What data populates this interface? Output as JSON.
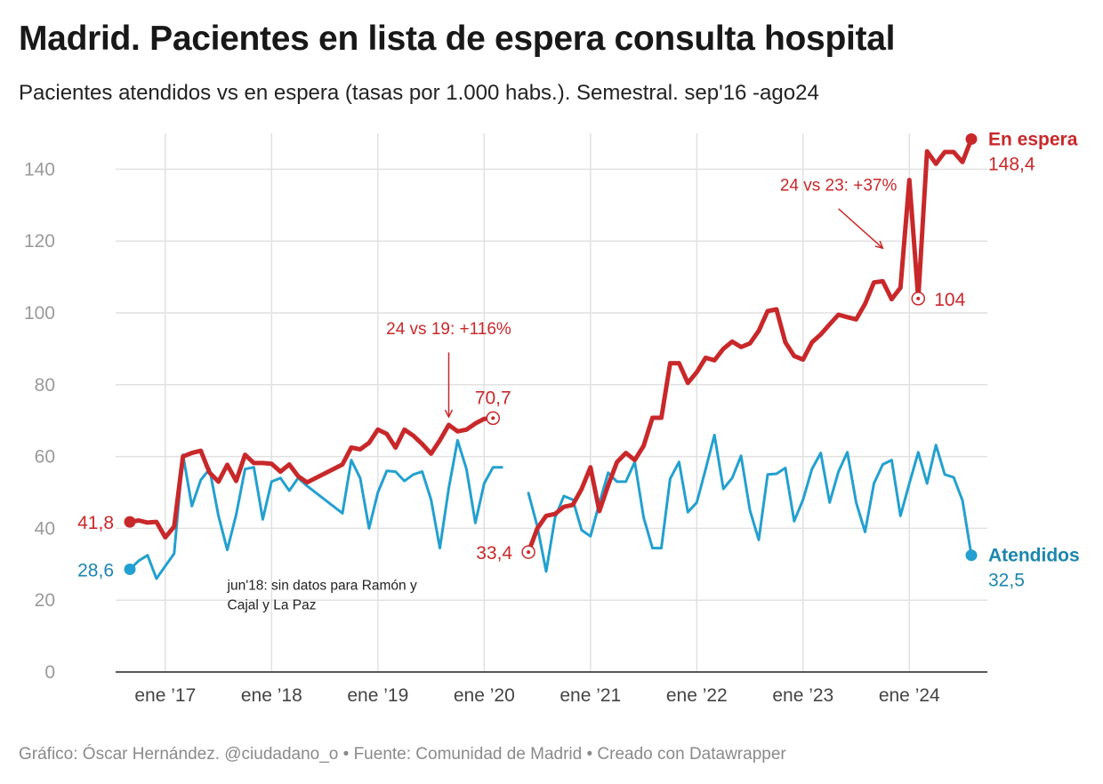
{
  "title": "Madrid. Pacientes en lista de espera consulta hospital",
  "subtitle": "Pacientes atendidos vs en espera (tasas por 1.000 habs.). Semestral. sep'16 -ago24",
  "footer": "Gráfico: Óscar Hernández. @ciudadano_o • Fuente: Comunidad de Madrid • Creado con Datawrapper",
  "colors": {
    "espera": "#c8282a",
    "atendidos": "#22a0cf",
    "atendidos_label": "#1b86ad"
  },
  "chart_data": {
    "type": "line",
    "ylim": [
      0,
      150
    ],
    "y_ticks": [
      "0",
      "20",
      "40",
      "60",
      "80",
      "100",
      "120",
      "140"
    ],
    "x_range": [
      "2016-09",
      "2024-08"
    ],
    "x_ticks": [
      {
        "date": "2017-01",
        "label": "ene ’17"
      },
      {
        "date": "2018-01",
        "label": "ene ’18"
      },
      {
        "date": "2019-01",
        "label": "ene ’19"
      },
      {
        "date": "2020-01",
        "label": "ene ’20"
      },
      {
        "date": "2021-01",
        "label": "ene ’21"
      },
      {
        "date": "2022-01",
        "label": "ene ’22"
      },
      {
        "date": "2023-01",
        "label": "ene ’23"
      },
      {
        "date": "2024-01",
        "label": "ene ’24"
      }
    ],
    "grid": true,
    "series": [
      {
        "name": "En espera",
        "end_label": "148,4",
        "segments": [
          [
            [
              "2016-09",
              41.8
            ],
            [
              "2016-10",
              42.2
            ],
            [
              "2016-11",
              41.6
            ],
            [
              "2016-12",
              41.8
            ],
            [
              "2017-01",
              37.5
            ],
            [
              "2017-02",
              40.5
            ],
            [
              "2017-03",
              60
            ],
            [
              "2017-04",
              61
            ],
            [
              "2017-05",
              61.6
            ],
            [
              "2017-06",
              55.5
            ],
            [
              "2017-07",
              53
            ],
            [
              "2017-08",
              57.7
            ],
            [
              "2017-09",
              53.2
            ],
            [
              "2017-10",
              60.5
            ],
            [
              "2017-11",
              58.2
            ],
            [
              "2017-12",
              58.2
            ],
            [
              "2018-01",
              58
            ],
            [
              "2018-02",
              55.8
            ],
            [
              "2018-03",
              57.8
            ],
            [
              "2018-04",
              54.5
            ],
            [
              "2018-05",
              52.8
            ],
            [
              "2018-09",
              57.8
            ],
            [
              "2018-10",
              62.5
            ],
            [
              "2018-11",
              62
            ],
            [
              "2018-12",
              63.8
            ],
            [
              "2019-01",
              67.5
            ],
            [
              "2019-02",
              66.3
            ],
            [
              "2019-03",
              62.5
            ],
            [
              "2019-04",
              67.5
            ],
            [
              "2019-05",
              65.8
            ],
            [
              "2019-06",
              63.5
            ],
            [
              "2019-07",
              60.8
            ],
            [
              "2019-08",
              64.5
            ],
            [
              "2019-09",
              68.8
            ],
            [
              "2019-10",
              67
            ],
            [
              "2019-11",
              67.5
            ],
            [
              "2019-12",
              69.2
            ],
            [
              "2020-01",
              70.5
            ],
            [
              "2020-02",
              70.7
            ]
          ],
          [
            [
              "2020-06",
              33.4
            ],
            [
              "2020-07",
              40
            ],
            [
              "2020-08",
              43.5
            ],
            [
              "2020-09",
              44
            ],
            [
              "2020-10",
              46
            ],
            [
              "2020-11",
              46.5
            ],
            [
              "2020-12",
              51
            ],
            [
              "2021-01",
              57
            ],
            [
              "2021-02",
              44.8
            ],
            [
              "2021-03",
              52
            ],
            [
              "2021-04",
              58.5
            ],
            [
              "2021-05",
              61
            ],
            [
              "2021-06",
              59
            ],
            [
              "2021-07",
              63
            ],
            [
              "2021-08",
              70.8
            ],
            [
              "2021-09",
              70.8
            ],
            [
              "2021-10",
              86
            ],
            [
              "2021-11",
              86
            ],
            [
              "2021-12",
              80.5
            ],
            [
              "2022-01",
              83.5
            ],
            [
              "2022-02",
              87.5
            ],
            [
              "2022-03",
              86.8
            ],
            [
              "2022-04",
              90
            ],
            [
              "2022-05",
              92
            ],
            [
              "2022-06",
              90.5
            ],
            [
              "2022-07",
              91.5
            ],
            [
              "2022-08",
              95
            ],
            [
              "2022-09",
              100.5
            ],
            [
              "2022-10",
              101
            ],
            [
              "2022-11",
              91.8
            ],
            [
              "2022-12",
              88
            ],
            [
              "2023-01",
              87
            ],
            [
              "2023-02",
              91.8
            ],
            [
              "2023-03",
              94
            ],
            [
              "2023-04",
              96.8
            ],
            [
              "2023-05",
              99.5
            ],
            [
              "2023-06",
              98.8
            ],
            [
              "2023-07",
              98.2
            ],
            [
              "2023-08",
              102.5
            ],
            [
              "2023-09",
              108.5
            ],
            [
              "2023-10",
              108.8
            ],
            [
              "2023-11",
              103.8
            ],
            [
              "2023-12",
              107
            ],
            [
              "2024-01",
              137
            ],
            [
              "2024-02",
              104
            ],
            [
              "2024-03",
              145
            ],
            [
              "2024-04",
              141.5
            ],
            [
              "2024-05",
              144.8
            ],
            [
              "2024-06",
              144.8
            ],
            [
              "2024-07",
              142
            ],
            [
              "2024-08",
              148.4
            ]
          ]
        ]
      },
      {
        "name": "Atendidos",
        "end_label": "32,5",
        "segments": [
          [
            [
              "2016-09",
              28.6
            ],
            [
              "2016-10",
              31
            ],
            [
              "2016-11",
              32.5
            ],
            [
              "2016-12",
              26
            ],
            [
              "2017-01",
              29.5
            ],
            [
              "2017-02",
              33
            ],
            [
              "2017-03",
              60.5
            ],
            [
              "2017-04",
              46.2
            ],
            [
              "2017-05",
              53.5
            ],
            [
              "2017-06",
              56.5
            ],
            [
              "2017-07",
              43.5
            ],
            [
              "2017-08",
              34
            ],
            [
              "2017-09",
              43.8
            ],
            [
              "2017-10",
              56.5
            ],
            [
              "2017-11",
              57
            ],
            [
              "2017-12",
              42.5
            ],
            [
              "2018-01",
              53
            ],
            [
              "2018-02",
              54
            ],
            [
              "2018-03",
              50.5
            ],
            [
              "2018-04",
              54
            ],
            [
              "2018-05",
              51.8
            ],
            [
              "2018-09",
              44.2
            ],
            [
              "2018-10",
              59
            ],
            [
              "2018-11",
              54
            ],
            [
              "2018-12",
              40
            ],
            [
              "2019-01",
              50
            ],
            [
              "2019-02",
              56
            ],
            [
              "2019-03",
              55.8
            ],
            [
              "2019-04",
              53.2
            ],
            [
              "2019-05",
              55
            ],
            [
              "2019-06",
              55.8
            ],
            [
              "2019-07",
              48
            ],
            [
              "2019-08",
              34.5
            ],
            [
              "2019-09",
              51.2
            ],
            [
              "2019-10",
              64.5
            ],
            [
              "2019-11",
              56.5
            ],
            [
              "2019-12",
              41.5
            ],
            [
              "2020-01",
              52.5
            ],
            [
              "2020-02",
              57
            ],
            [
              "2020-03",
              57
            ]
          ],
          [
            [
              "2020-06",
              49.8
            ],
            [
              "2020-07",
              40.5
            ],
            [
              "2020-08",
              28
            ],
            [
              "2020-09",
              43
            ],
            [
              "2020-10",
              49
            ],
            [
              "2020-11",
              48
            ],
            [
              "2020-12",
              39.5
            ],
            [
              "2021-01",
              37.8
            ],
            [
              "2021-02",
              47
            ],
            [
              "2021-03",
              55.5
            ],
            [
              "2021-04",
              53
            ],
            [
              "2021-05",
              53
            ],
            [
              "2021-06",
              58.5
            ],
            [
              "2021-07",
              43
            ],
            [
              "2021-08",
              34.5
            ],
            [
              "2021-09",
              34.5
            ],
            [
              "2021-10",
              53.8
            ],
            [
              "2021-11",
              58.5
            ],
            [
              "2021-12",
              44.5
            ],
            [
              "2022-01",
              47.2
            ],
            [
              "2022-02",
              56.5
            ],
            [
              "2022-03",
              66
            ],
            [
              "2022-04",
              51
            ],
            [
              "2022-05",
              54
            ],
            [
              "2022-06",
              60.2
            ],
            [
              "2022-07",
              45
            ],
            [
              "2022-08",
              36.8
            ],
            [
              "2022-09",
              55
            ],
            [
              "2022-10",
              55.2
            ],
            [
              "2022-11",
              56.8
            ],
            [
              "2022-12",
              42
            ],
            [
              "2023-01",
              48
            ],
            [
              "2023-02",
              56.5
            ],
            [
              "2023-03",
              61
            ],
            [
              "2023-04",
              47.2
            ],
            [
              "2023-05",
              55.8
            ],
            [
              "2023-06",
              61.2
            ],
            [
              "2023-07",
              47.2
            ],
            [
              "2023-08",
              39
            ],
            [
              "2023-09",
              52.5
            ],
            [
              "2023-10",
              57.8
            ],
            [
              "2023-11",
              59
            ],
            [
              "2023-12",
              43.5
            ],
            [
              "2024-01",
              52.5
            ],
            [
              "2024-02",
              61.2
            ],
            [
              "2024-03",
              52.5
            ],
            [
              "2024-04",
              63.2
            ],
            [
              "2024-05",
              55
            ],
            [
              "2024-06",
              54.2
            ],
            [
              "2024-07",
              47.8
            ],
            [
              "2024-08",
              32.5
            ]
          ]
        ]
      }
    ],
    "point_labels": [
      {
        "series": "En espera",
        "date": "2016-09",
        "value": 41.8,
        "text": "41,8",
        "marker": "filled",
        "side": "left"
      },
      {
        "series": "Atendidos",
        "date": "2016-09",
        "value": 28.6,
        "text": "28,6",
        "marker": "filled",
        "side": "left"
      },
      {
        "series": "En espera",
        "date": "2020-02",
        "value": 70.7,
        "text": "70,7",
        "marker": "open",
        "side": "above"
      },
      {
        "series": "En espera",
        "date": "2020-06",
        "value": 33.4,
        "text": "33,4",
        "marker": "open",
        "side": "left"
      },
      {
        "series": "En espera",
        "date": "2024-02",
        "value": 104,
        "text": "104",
        "marker": "open",
        "side": "right"
      }
    ],
    "annotations": [
      {
        "text": "24 vs 19: +116%",
        "text_date": "2019-09",
        "text_value": 94,
        "arrow_from": [
          "2019-09",
          89
        ],
        "arrow_to": [
          "2019-09",
          71
        ]
      },
      {
        "text": "24 vs 23: +37%",
        "text_date": "2023-05",
        "text_value": 134,
        "arrow_from": [
          "2023-05",
          129
        ],
        "arrow_to": [
          "2023-10",
          118
        ]
      }
    ],
    "note": {
      "lines": [
        "jun'18: sin datos para Ramón y",
        "Cajal y La Paz"
      ],
      "date": "2017-08",
      "value": 10.5
    }
  }
}
